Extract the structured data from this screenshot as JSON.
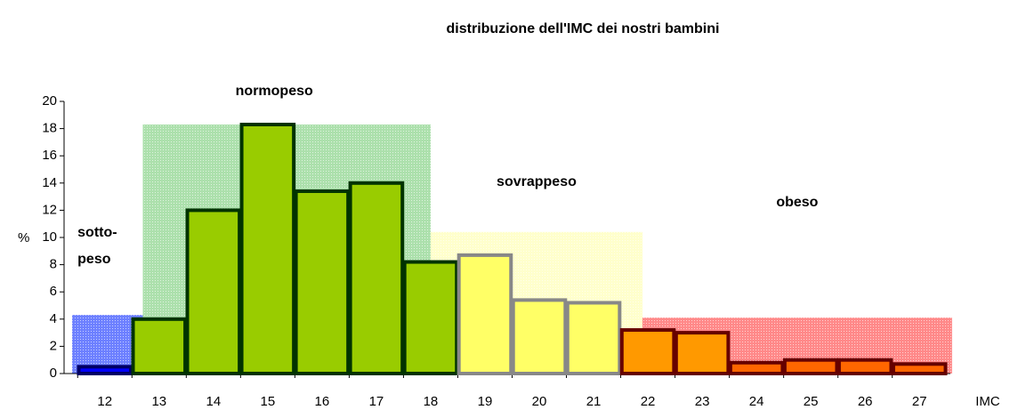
{
  "chart_data": {
    "type": "bar",
    "title": "distribuzione dell'IMC dei nostri bambini",
    "x_label": "IMC",
    "y_label": "%",
    "categories": [
      "12",
      "13",
      "14",
      "15",
      "16",
      "17",
      "18",
      "19",
      "20",
      "21",
      "22",
      "23",
      "24",
      "25",
      "26",
      "27"
    ],
    "x": [
      12,
      13,
      14,
      15,
      16,
      17,
      18,
      19,
      20,
      21,
      22,
      23,
      24,
      25,
      26,
      27
    ],
    "values": [
      0.5,
      4,
      12,
      18.3,
      13.4,
      14,
      8.2,
      8.7,
      5.4,
      5.2,
      3.2,
      3,
      0.8,
      1,
      1,
      0.7
    ],
    "colors": [
      "#0000ff",
      "#99cc00",
      "#99cc00",
      "#99cc00",
      "#99cc00",
      "#99cc00",
      "#99cc00",
      "#ffff66",
      "#ffff66",
      "#ffff66",
      "#ff9900",
      "#ff9900",
      "#ff6600",
      "#ff6600",
      "#ff6600",
      "#ff6600"
    ],
    "edge_colors": [
      "#000066",
      "#003300",
      "#003300",
      "#003300",
      "#003300",
      "#003300",
      "#003300",
      "#888888",
      "#888888",
      "#888888",
      "#660000",
      "#660000",
      "#660000",
      "#660000",
      "#660000",
      "#660000"
    ],
    "zones": [
      {
        "label": [
          "sotto-",
          "peso"
        ],
        "from": 11.4,
        "to": 12.7,
        "height": 4.3,
        "color": "#1e3cff"
      },
      {
        "label": [
          "normopeso"
        ],
        "from": 12.7,
        "to": 18,
        "height": 18.3,
        "color": "#7fcf7f"
      },
      {
        "label": [
          "sovrappeso"
        ],
        "from": 18,
        "to": 21.9,
        "height": 10.4,
        "color": "#ffffb0"
      },
      {
        "label": [
          "obeso"
        ],
        "from": 21.9,
        "to": 27.6,
        "height": 4.1,
        "color": "#ff4a4a"
      }
    ],
    "xlim": [
      11.25,
      27.57
    ],
    "ylim": [
      0,
      20
    ],
    "yticks": [
      0,
      2,
      4,
      6,
      8,
      10,
      12,
      14,
      16,
      18,
      20
    ]
  }
}
